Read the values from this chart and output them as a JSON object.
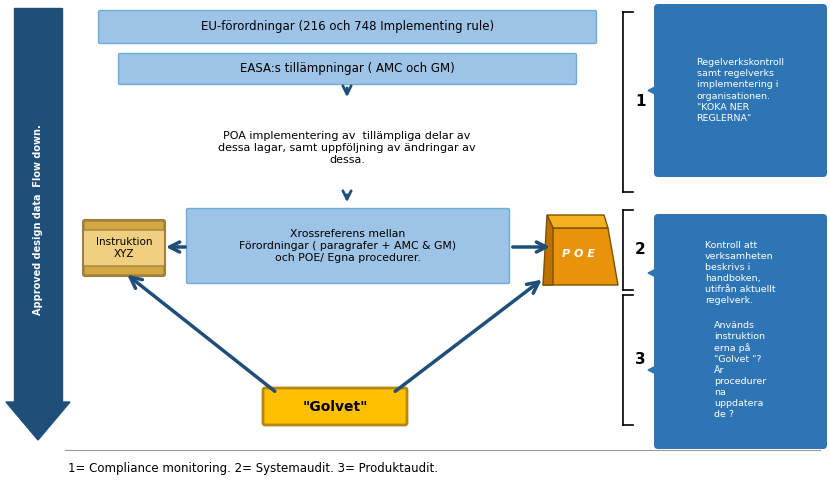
{
  "bg_color": "#ffffff",
  "arrow_color": "#1F4E79",
  "light_blue_box_color": "#9DC3E6",
  "dark_blue_box_color": "#2E75B6",
  "gold_box_color": "#FFC000",
  "scroll_color": "#F0D080",
  "scroll_border": "#A08040",
  "bracket_color": "#000000",
  "text_dark": "#000000",
  "text_white": "#ffffff",
  "box1_text": "EU-förordningar (216 och 748 Implementing rule)",
  "box2_text": "EASA:s tillämpningar ( AMC och GM)",
  "box3_text": "POA implementering av  tillämpliga delar av\ndessa lagar, samt uppföljning av ändringar av\ndessa.",
  "box4_text": "Xrossreferens mellan\nFörordningar ( paragrafer + AMC & GM)\noch POE/ Egna procedurer.",
  "scroll_text": "Instruktion\nXYZ",
  "golvet_text": "\"Golvet\"",
  "poe_text": "P O E",
  "side_arrow_text": "Approved design data  Flow down.",
  "bubble1_text": "Regelverkskontroll\nsamt regelverks\nimplementering i\norganisationen.\n\"KOKA NER\nREGLERNA\"",
  "bubble2_text": "Kontroll att\nverksamheten\nbeskrivs i\nhandboken,\nutifrån aktuellt\nregelverk.",
  "bubble3_text": "Används\ninstruktion\nerna på\n\"Golvet \"?\nÄr\nprocedurer\nna\nuppdatera\nde ?",
  "label1": "1",
  "label2": "2",
  "label3": "3",
  "footer_text": "1= Compliance monitoring. 2= Systemaudit. 3= Produktaudit."
}
